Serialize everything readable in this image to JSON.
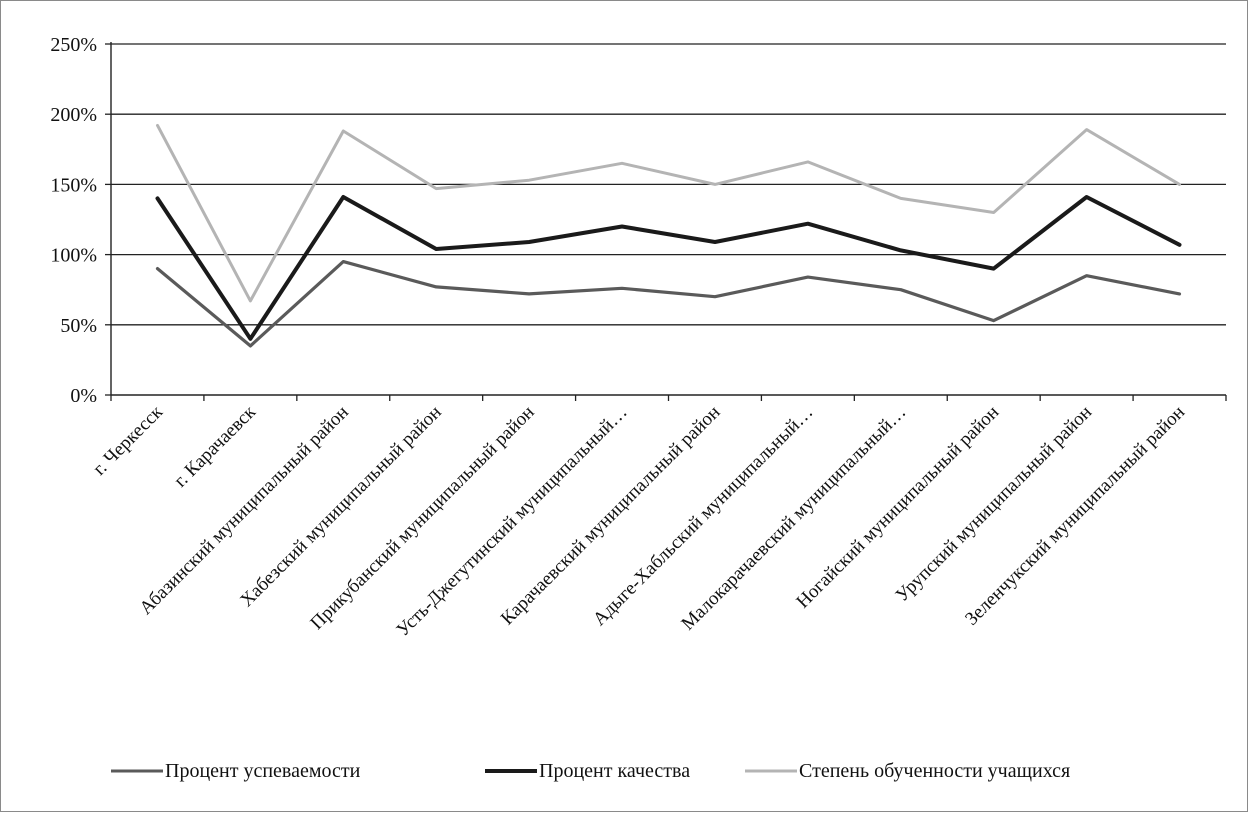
{
  "chart_data": {
    "type": "line",
    "categories": [
      "г. Черкесск",
      "г. Карачаевск",
      "Абазинский муниципальный район",
      "Хабезский муниципальный район",
      "Прикубанский муниципальный район",
      "Усть-Джегутинский муниципальный…",
      "Карачаевский муниципальный район",
      "Адыге-Хабльский муниципальный…",
      "Малокарачаевский муниципальный…",
      "Ногайский муниципальный район",
      "Урупский муниципальный район",
      "Зеленчукский муниципальный район"
    ],
    "series": [
      {
        "name": "Процент успеваемости",
        "color": "#5a5a5a",
        "values": [
          0.9,
          0.35,
          0.95,
          0.77,
          0.72,
          0.76,
          0.7,
          0.84,
          0.75,
          0.53,
          0.85,
          0.72
        ]
      },
      {
        "name": "Процент качества",
        "color": "#1a1a1a",
        "values": [
          1.4,
          0.4,
          1.41,
          1.04,
          1.09,
          1.2,
          1.09,
          1.22,
          1.03,
          0.9,
          1.41,
          1.07
        ]
      },
      {
        "name": "Степень обученности учащихся",
        "color": "#b4b4b4",
        "values": [
          1.92,
          0.67,
          1.88,
          1.47,
          1.53,
          1.65,
          1.5,
          1.66,
          1.4,
          1.3,
          1.89,
          1.5
        ]
      }
    ],
    "y_ticks": [
      "0%",
      "50%",
      "100%",
      "150%",
      "200%",
      "250%"
    ],
    "ylim": [
      0,
      2.5
    ],
    "grid": true,
    "legend_position": "bottom"
  }
}
